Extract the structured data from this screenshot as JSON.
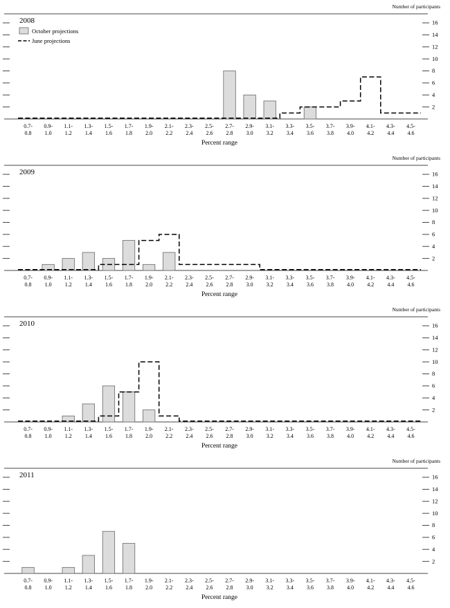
{
  "figure": {
    "right_axis_title": "Number of participants",
    "x_axis_title": "Percent range",
    "legend": [
      {
        "key": "october",
        "label": "October projections"
      },
      {
        "key": "june",
        "label": "June projections"
      }
    ],
    "bar_fill": "#dcdcdc",
    "bar_stroke": "#666666",
    "line_color": "#000000",
    "axis_color": "#444444"
  },
  "chart_data": [
    {
      "type": "bar",
      "title": "2008",
      "categories": [
        "0.7-0.8",
        "0.9-1.0",
        "1.1-1.2",
        "1.3-1.4",
        "1.5-1.6",
        "1.7-1.8",
        "1.9-2.0",
        "2.1-2.2",
        "2.3-2.4",
        "2.5-2.6",
        "2.7-2.8",
        "2.9-3.0",
        "3.1-3.2",
        "3.3-3.4",
        "3.5-3.6",
        "3.7-3.8",
        "3.9-4.0",
        "4.1-4.2",
        "4.3-4.4",
        "4.5-4.6"
      ],
      "series": [
        {
          "name": "October projections",
          "style": "bars",
          "values": [
            0,
            0,
            0,
            0,
            0,
            0,
            0,
            0,
            0,
            0,
            8,
            4,
            3,
            0,
            2,
            0,
            0,
            0,
            0,
            0
          ]
        },
        {
          "name": "June projections",
          "style": "dashed-step",
          "values": [
            0,
            0,
            0,
            0,
            0,
            0,
            0,
            0,
            0,
            0,
            0,
            0,
            0,
            1,
            2,
            2,
            3,
            7,
            1,
            1
          ]
        }
      ],
      "xlabel": "Percent range",
      "ylabel_right": "Number of participants",
      "ylim": [
        0,
        17.5
      ],
      "yticks": [
        2,
        4,
        6,
        8,
        10,
        12,
        14,
        16
      ],
      "legend_visible": true
    },
    {
      "type": "bar",
      "title": "2009",
      "categories": [
        "0.7-0.8",
        "0.9-1.0",
        "1.1-1.2",
        "1.3-1.4",
        "1.5-1.6",
        "1.7-1.8",
        "1.9-2.0",
        "2.1-2.2",
        "2.3-2.4",
        "2.5-2.6",
        "2.7-2.8",
        "2.9-3.0",
        "3.1-3.2",
        "3.3-3.4",
        "3.5-3.6",
        "3.7-3.8",
        "3.9-4.0",
        "4.1-4.2",
        "4.3-4.4",
        "4.5-4.6"
      ],
      "series": [
        {
          "name": "October projections",
          "style": "bars",
          "values": [
            0,
            1,
            2,
            3,
            2,
            5,
            1,
            3,
            0,
            0,
            0,
            0,
            0,
            0,
            0,
            0,
            0,
            0,
            0,
            0
          ]
        },
        {
          "name": "June projections",
          "style": "dashed-step",
          "values": [
            0,
            0,
            0,
            0,
            1,
            1,
            5,
            6,
            1,
            1,
            1,
            1,
            0,
            0,
            0,
            0,
            0,
            0,
            0,
            0
          ]
        }
      ],
      "xlabel": "Percent range",
      "ylabel_right": "Number of participants",
      "ylim": [
        0,
        17.5
      ],
      "yticks": [
        2,
        4,
        6,
        8,
        10,
        12,
        14,
        16
      ],
      "legend_visible": false
    },
    {
      "type": "bar",
      "title": "2010",
      "categories": [
        "0.7-0.8",
        "0.9-1.0",
        "1.1-1.2",
        "1.3-1.4",
        "1.5-1.6",
        "1.7-1.8",
        "1.9-2.0",
        "2.1-2.2",
        "2.3-2.4",
        "2.5-2.6",
        "2.7-2.8",
        "2.9-3.0",
        "3.1-3.2",
        "3.3-3.4",
        "3.5-3.6",
        "3.7-3.8",
        "3.9-4.0",
        "4.1-4.2",
        "4.3-4.4",
        "4.5-4.6"
      ],
      "series": [
        {
          "name": "October projections",
          "style": "bars",
          "values": [
            0,
            0,
            1,
            3,
            6,
            5,
            2,
            0,
            0,
            0,
            0,
            0,
            0,
            0,
            0,
            0,
            0,
            0,
            0,
            0
          ]
        },
        {
          "name": "June projections",
          "style": "dashed-step",
          "values": [
            0,
            0,
            0,
            0,
            1,
            5,
            10,
            1,
            0,
            0,
            0,
            0,
            0,
            0,
            0,
            0,
            0,
            0,
            0,
            0
          ]
        }
      ],
      "xlabel": "Percent range",
      "ylabel_right": "Number of participants",
      "ylim": [
        0,
        17.5
      ],
      "yticks": [
        2,
        4,
        6,
        8,
        10,
        12,
        14,
        16
      ],
      "legend_visible": false
    },
    {
      "type": "bar",
      "title": "2011",
      "categories": [
        "0.7-0.8",
        "0.9-1.0",
        "1.1-1.2",
        "1.3-1.4",
        "1.5-1.6",
        "1.7-1.8",
        "1.9-2.0",
        "2.1-2.2",
        "2.3-2.4",
        "2.5-2.6",
        "2.7-2.8",
        "2.9-3.0",
        "3.1-3.2",
        "3.3-3.4",
        "3.5-3.6",
        "3.7-3.8",
        "3.9-4.0",
        "4.1-4.2",
        "4.3-4.4",
        "4.5-4.6"
      ],
      "series": [
        {
          "name": "October projections",
          "style": "bars",
          "values": [
            1,
            0,
            1,
            3,
            7,
            5,
            0,
            0,
            0,
            0,
            0,
            0,
            0,
            0,
            0,
            0,
            0,
            0,
            0,
            0
          ]
        }
      ],
      "xlabel": "Percent range",
      "ylabel_right": "Number of participants",
      "ylim": [
        0,
        17.5
      ],
      "yticks": [
        2,
        4,
        6,
        8,
        10,
        12,
        14,
        16
      ],
      "legend_visible": false
    }
  ]
}
